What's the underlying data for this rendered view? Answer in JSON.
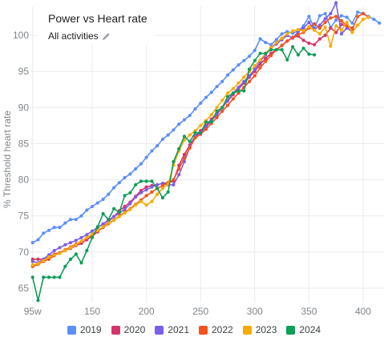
{
  "chart_data": {
    "type": "line",
    "title": "Power vs Heart rate",
    "subtitle": "All activities",
    "ylabel": "% Threshold heart rate",
    "xlabel": "",
    "xlim": [
      93,
      420
    ],
    "ylim": [
      63,
      104
    ],
    "x_ticks": [
      95,
      150,
      200,
      250,
      300,
      350,
      400
    ],
    "x_tick_labels": [
      "95w",
      "150",
      "200",
      "250",
      "300",
      "350",
      "400"
    ],
    "y_ticks": [
      65,
      70,
      75,
      80,
      85,
      90,
      95,
      100
    ],
    "y_tick_labels": [
      "65",
      "70",
      "75",
      "80",
      "85",
      "90",
      "95",
      "100"
    ],
    "legend_position": "bottom",
    "series": [
      {
        "name": "2019",
        "color": "#5b8ff9",
        "x": [
          95,
          100,
          105,
          110,
          115,
          120,
          125,
          130,
          135,
          140,
          145,
          150,
          155,
          160,
          165,
          170,
          175,
          180,
          185,
          190,
          195,
          200,
          205,
          210,
          215,
          220,
          225,
          230,
          235,
          240,
          245,
          250,
          255,
          260,
          265,
          270,
          275,
          280,
          285,
          290,
          295,
          300,
          305,
          310,
          315,
          320,
          325,
          330,
          335,
          340,
          345,
          350,
          355,
          360,
          365,
          370,
          375,
          380,
          385,
          390,
          395,
          400,
          405,
          410,
          415
        ],
        "y": [
          71.3,
          71.7,
          72.6,
          73.0,
          73.4,
          73.4,
          74.0,
          74.5,
          74.5,
          75.0,
          75.8,
          76.3,
          76.8,
          77.3,
          78.0,
          78.9,
          79.6,
          80.3,
          80.8,
          81.5,
          82.2,
          83.1,
          84.0,
          84.7,
          85.6,
          86.2,
          86.9,
          87.7,
          88.3,
          88.9,
          89.8,
          90.6,
          91.4,
          92.1,
          92.9,
          93.6,
          94.5,
          95.2,
          95.9,
          96.5,
          97.1,
          97.9,
          99.5,
          99.0,
          98.7,
          99.4,
          100.2,
          100.5,
          100.3,
          100.6,
          101.3,
          102.6,
          101.0,
          102.7,
          103.0,
          101.1,
          102.1,
          102.7,
          102.5,
          101.7,
          103.2,
          103.0,
          102.6,
          102.2,
          101.7
        ]
      },
      {
        "name": "2020",
        "color": "#d6336c",
        "x": [
          95,
          100,
          105,
          110,
          115,
          120,
          125,
          130,
          135,
          140,
          145,
          150,
          155,
          160,
          165,
          170,
          175,
          180,
          185,
          190,
          195,
          200,
          205,
          210,
          215,
          220,
          225,
          230,
          235,
          240,
          245,
          250,
          255,
          260,
          265,
          270,
          275,
          280,
          285,
          290,
          295,
          300,
          305,
          310,
          315,
          320,
          325,
          330,
          335,
          340,
          345,
          350,
          355,
          360,
          365,
          370,
          375,
          380,
          385,
          390
        ],
        "y": [
          69.0,
          69.0,
          69.0,
          69.4,
          69.7,
          69.9,
          70.2,
          70.5,
          70.9,
          71.2,
          71.7,
          72.2,
          72.8,
          73.5,
          74.2,
          74.9,
          75.7,
          76.3,
          76.9,
          77.7,
          78.5,
          79.0,
          79.2,
          79.3,
          79.5,
          79.6,
          79.8,
          82.0,
          83.5,
          84.8,
          86.0,
          86.8,
          87.5,
          88.4,
          89.2,
          90.0,
          90.9,
          91.8,
          92.6,
          93.4,
          94.2,
          95.0,
          96.0,
          96.8,
          97.5,
          98.0,
          98.6,
          99.2,
          99.7,
          99.9,
          99.3,
          98.9,
          98.7,
          99.5,
          100.0,
          101.0,
          100.4,
          101.5,
          101.3,
          101.0
        ]
      },
      {
        "name": "2021",
        "color": "#7b5ee8",
        "x": [
          95,
          100,
          105,
          110,
          115,
          120,
          125,
          130,
          135,
          140,
          145,
          150,
          155,
          160,
          165,
          170,
          175,
          180,
          185,
          190,
          195,
          200,
          205,
          210,
          215,
          220,
          225,
          230,
          235,
          240,
          245,
          250,
          255,
          260,
          265,
          270,
          275,
          280,
          285,
          290,
          295,
          300,
          305,
          310,
          315,
          320,
          325,
          330,
          335,
          340,
          345,
          350,
          355,
          360,
          365,
          370,
          375,
          380,
          385,
          390
        ],
        "y": [
          68.7,
          68.5,
          69.0,
          69.6,
          70.2,
          70.6,
          71.0,
          71.3,
          71.6,
          72.0,
          72.4,
          72.9,
          73.4,
          73.9,
          74.4,
          74.9,
          75.4,
          75.9,
          76.7,
          77.6,
          78.2,
          78.6,
          79.0,
          79.3,
          79.5,
          79.3,
          79.3,
          80.7,
          82.5,
          84.5,
          86.0,
          86.5,
          87.3,
          88.2,
          89.0,
          90.0,
          91.0,
          92.0,
          92.8,
          93.6,
          94.4,
          95.3,
          96.4,
          97.3,
          98.3,
          98.8,
          99.4,
          100.0,
          99.6,
          100.5,
          101.0,
          101.8,
          100.8,
          101.4,
          102.3,
          103.0,
          104.5,
          100.2,
          101.0,
          100.5
        ]
      },
      {
        "name": "2022",
        "color": "#f4511e",
        "x": [
          95,
          100,
          105,
          110,
          115,
          120,
          125,
          130,
          135,
          140,
          145,
          150,
          155,
          160,
          165,
          170,
          175,
          180,
          185,
          190,
          195,
          200,
          205,
          210,
          215,
          220,
          225,
          230,
          235,
          240,
          245,
          250,
          255,
          260,
          265,
          270,
          275,
          280,
          285,
          290,
          295,
          300,
          305,
          310,
          315,
          320,
          325,
          330,
          335,
          340,
          345,
          350,
          355,
          360,
          365,
          370,
          375,
          380,
          385,
          390,
          395,
          400,
          405
        ],
        "y": [
          68.0,
          68.3,
          68.7,
          69.0,
          69.5,
          69.9,
          70.3,
          70.7,
          71.1,
          71.5,
          72.0,
          72.4,
          72.9,
          73.4,
          73.9,
          74.4,
          75.0,
          75.5,
          76.0,
          76.6,
          77.2,
          77.8,
          78.3,
          78.8,
          79.2,
          79.6,
          80.0,
          81.5,
          83.0,
          84.4,
          85.8,
          86.3,
          87.0,
          87.8,
          88.6,
          89.5,
          90.3,
          91.2,
          92.0,
          92.8,
          93.6,
          94.4,
          95.5,
          96.4,
          97.2,
          98.0,
          98.6,
          99.2,
          99.7,
          100.1,
          100.4,
          101.0,
          101.6,
          101.0,
          101.8,
          102.4,
          102.6,
          102.0,
          101.3,
          100.8,
          102.6,
          103.0,
          102.5
        ]
      },
      {
        "name": "2023",
        "color": "#f9ab00",
        "x": [
          95,
          100,
          105,
          110,
          115,
          120,
          125,
          130,
          135,
          140,
          145,
          150,
          155,
          160,
          165,
          170,
          175,
          180,
          185,
          190,
          195,
          200,
          205,
          210,
          215,
          220,
          225,
          230,
          235,
          240,
          245,
          250,
          255,
          260,
          265,
          270,
          275,
          280,
          285,
          290,
          295,
          300,
          305,
          310,
          315,
          320,
          325,
          330,
          335,
          340,
          345,
          350,
          355,
          360,
          365,
          370,
          375,
          380,
          385,
          390,
          395,
          400,
          405
        ],
        "y": [
          68.2,
          68.4,
          68.8,
          69.3,
          69.6,
          69.8,
          70.2,
          70.6,
          71.0,
          71.5,
          72.0,
          72.5,
          73.0,
          73.5,
          74.0,
          74.4,
          74.9,
          75.4,
          75.9,
          76.5,
          77.0,
          76.5,
          77.0,
          78.0,
          78.8,
          79.4,
          82.0,
          84.0,
          85.5,
          86.2,
          86.8,
          87.5,
          88.2,
          89.0,
          90.0,
          91.0,
          92.0,
          92.6,
          93.4,
          94.2,
          95.0,
          95.8,
          96.6,
          97.5,
          98.3,
          99.0,
          99.6,
          100.2,
          100.6,
          100.8,
          100.6,
          101.2,
          100.7,
          100.2,
          101.1,
          98.5,
          101.3,
          100.7,
          101.8,
          100.4,
          101.4,
          102.2,
          102.5
        ]
      },
      {
        "name": "2024",
        "color": "#0f9d58",
        "x": [
          95,
          100,
          105,
          110,
          115,
          120,
          125,
          130,
          135,
          140,
          145,
          150,
          155,
          160,
          165,
          170,
          175,
          180,
          185,
          190,
          195,
          200,
          205,
          210,
          215,
          220,
          225,
          230,
          235,
          240,
          245,
          250,
          255,
          260,
          265,
          270,
          275,
          280,
          285,
          290,
          295,
          300,
          305,
          310,
          315,
          320,
          325,
          330,
          335,
          340,
          345,
          350,
          355
        ],
        "y": [
          66.5,
          63.3,
          66.5,
          66.5,
          66.5,
          66.5,
          68.0,
          69.0,
          69.7,
          68.5,
          70.2,
          72.0,
          73.5,
          75.3,
          74.5,
          76.0,
          75.5,
          77.8,
          78.2,
          79.3,
          79.8,
          79.8,
          79.8,
          78.8,
          77.5,
          78.3,
          82.5,
          84.3,
          86.0,
          85.3,
          86.5,
          86.5,
          88.0,
          88.0,
          89.5,
          90.0,
          91.5,
          92.0,
          92.3,
          92.3,
          95.3,
          96.5,
          97.5,
          97.5,
          98.0,
          98.0,
          98.0,
          96.6,
          98.4,
          97.3,
          98.2,
          97.4,
          97.3
        ]
      }
    ]
  }
}
